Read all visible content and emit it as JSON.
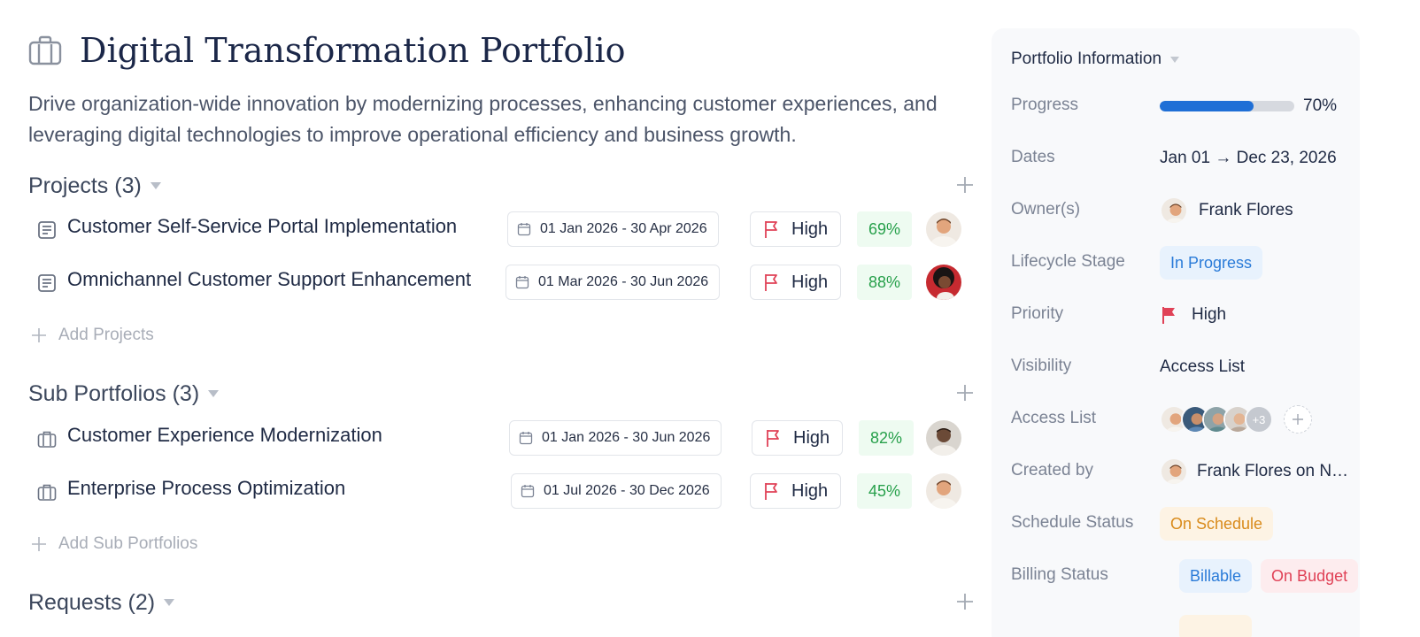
{
  "portfolio": {
    "title": "Digital Transformation Portfolio",
    "description": "Drive organization-wide innovation by modernizing processes, enhancing customer experiences, and leveraging digital technologies to improve operational efficiency and business growth."
  },
  "projects": {
    "heading": "Projects (3)",
    "add_label": "Add Projects",
    "items": [
      {
        "name": "Customer Self-Service Portal Implementation",
        "dates": "01 Jan 2026 - 30 Apr 2026",
        "priority": "High",
        "progress": "69%"
      },
      {
        "name": "Omnichannel Customer Support Enhancement",
        "dates": "01 Mar 2026 - 30 Jun 2026",
        "priority": "High",
        "progress": "88%"
      }
    ]
  },
  "sub_portfolios": {
    "heading": "Sub Portfolios (3)",
    "add_label": "Add Sub Portfolios",
    "items": [
      {
        "name": "Customer Experience Modernization",
        "dates": "01 Jan 2026 - 30 Jun 2026",
        "priority": "High",
        "progress": "82%"
      },
      {
        "name": "Enterprise Process Optimization",
        "dates": "01 Jul 2026 - 30 Dec 2026",
        "priority": "High",
        "progress": "45%"
      }
    ]
  },
  "requests": {
    "heading": "Requests (2)"
  },
  "info_panel": {
    "heading": "Portfolio Information",
    "progress_label": "Progress",
    "progress_value": 0.7,
    "progress_text": "70%",
    "dates_label": "Dates",
    "dates_value": "Jan 01 → Dec 23, 2026",
    "owners_label": "Owner(s)",
    "owner_name": "Frank Flores",
    "lifecycle_label": "Lifecycle Stage",
    "lifecycle_value": "In Progress",
    "priority_label": "Priority",
    "priority_value": "High",
    "visibility_label": "Visibility",
    "visibility_value": "Access List",
    "access_list_label": "Access List",
    "access_more": "+3",
    "created_by_label": "Created by",
    "created_by_value": "Frank Flores on N…",
    "schedule_label": "Schedule Status",
    "schedule_value": "On Schedule",
    "billing_label": "Billing Status",
    "billing_value": "Billable",
    "budget_value": "On Budget"
  },
  "colors": {
    "accent": "#1f6fd6",
    "priority_flag": "#e04257",
    "progress_green": "#27a04b"
  }
}
